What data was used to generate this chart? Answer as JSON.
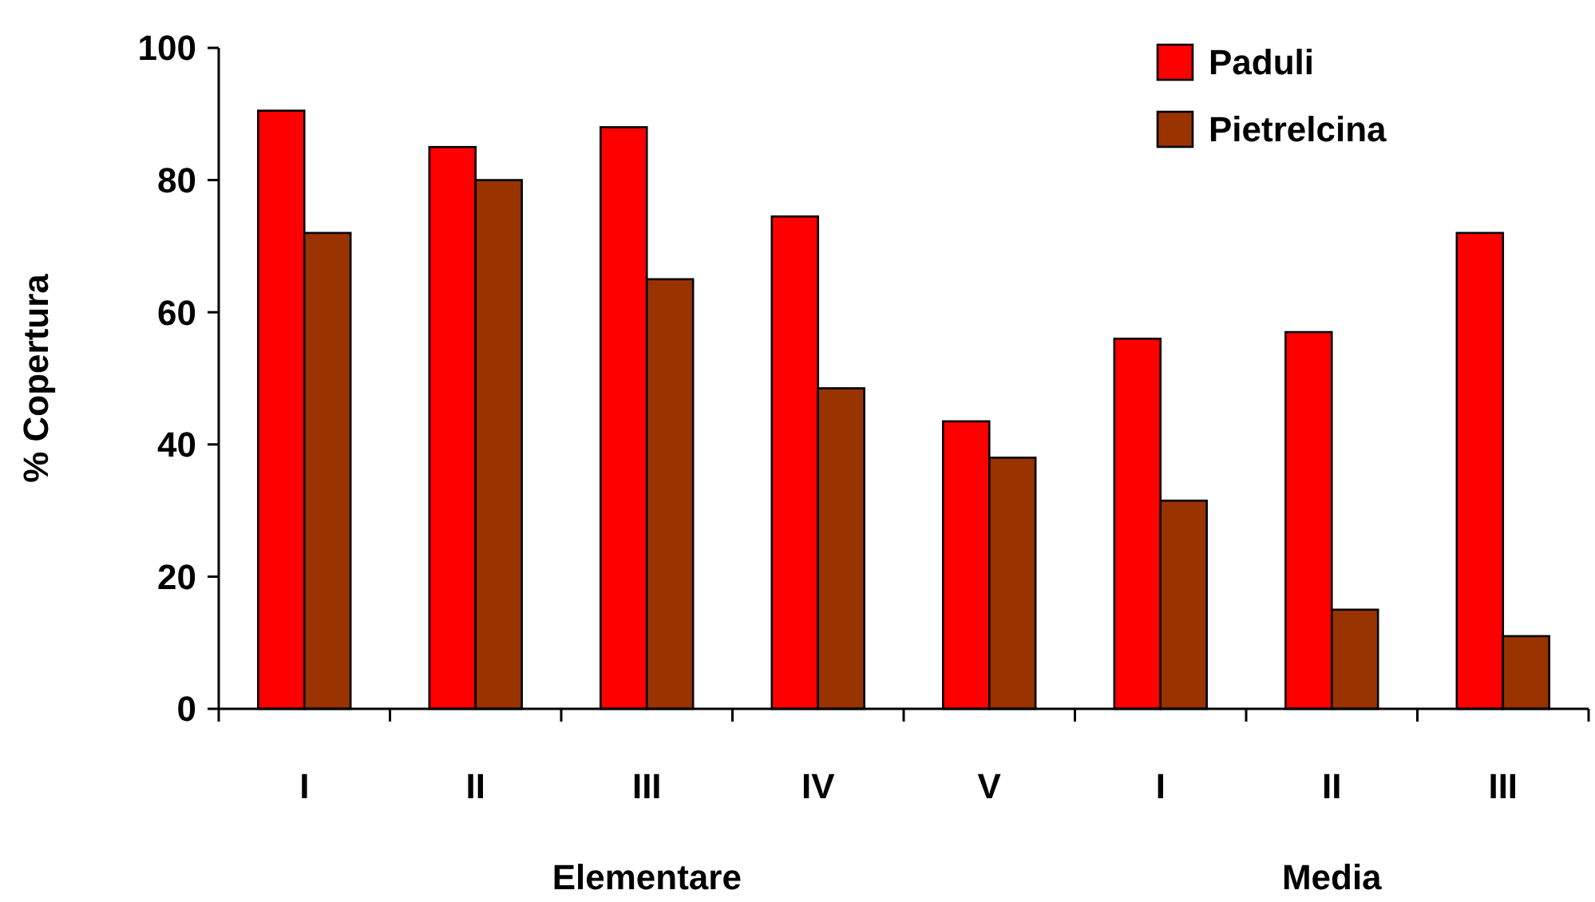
{
  "chart_data": {
    "type": "bar",
    "ylabel": "% Copertura",
    "categories": [
      "I",
      "II",
      "III",
      "IV",
      "V",
      "I",
      "II",
      "III"
    ],
    "series": [
      {
        "name": "Paduli",
        "color": "#ff0000",
        "values": [
          90.5,
          85,
          88,
          74.5,
          43.5,
          56,
          57,
          72
        ]
      },
      {
        "name": "Pietrelcina",
        "color": "#993300",
        "values": [
          72,
          80,
          65,
          48.5,
          38,
          31.5,
          15,
          11
        ]
      }
    ],
    "ylim": [
      0,
      100
    ],
    "yticks": [
      0,
      20,
      40,
      60,
      80,
      100
    ],
    "grid": false,
    "legend": "top right",
    "annotations": [
      "Elementare",
      "Media"
    ]
  }
}
